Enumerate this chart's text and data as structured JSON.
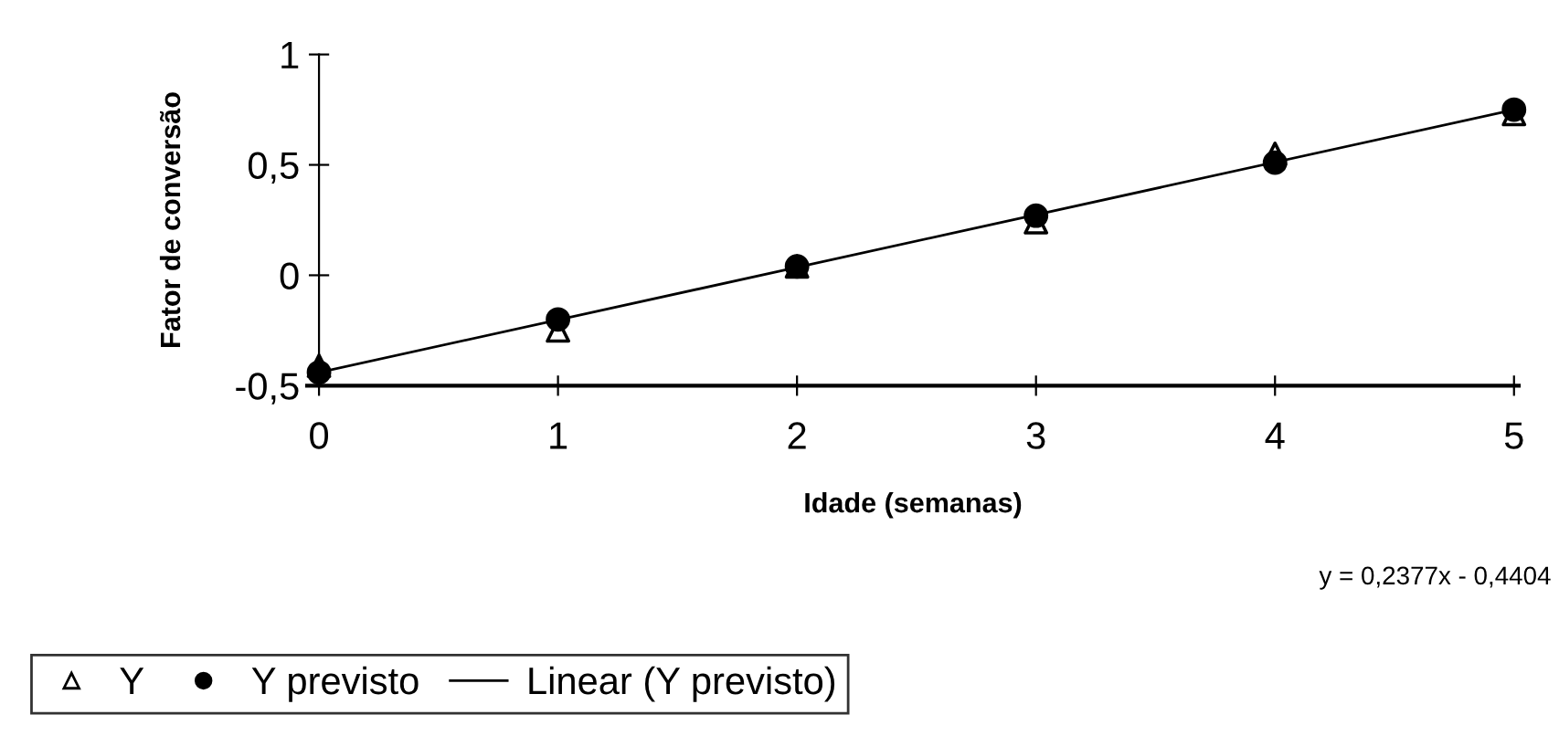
{
  "chart_data": {
    "type": "scatter",
    "xlabel": "Idade (semanas)",
    "ylabel": "Fator de conversão",
    "x": [
      0,
      1,
      2,
      3,
      4,
      5
    ],
    "series": [
      {
        "name": "Y",
        "color": "#000000",
        "marker": "triangle",
        "values": [
          -0.41,
          -0.25,
          0.04,
          0.24,
          0.55,
          0.73
        ]
      },
      {
        "name": "Y previsto",
        "color": "#000000",
        "marker": "circle",
        "values": [
          -0.44,
          -0.2,
          0.04,
          0.27,
          0.51,
          0.75
        ]
      },
      {
        "name": "Linear (Y previsto)",
        "type": "line",
        "color": "#000000",
        "marker": "none",
        "line_style": "solid",
        "x": [
          0,
          5
        ],
        "values": [
          -0.44,
          0.75
        ]
      }
    ],
    "xlim": [
      -0.05,
      5.02
    ],
    "ylim": [
      -0.5,
      1
    ],
    "xticks": [
      0,
      1,
      2,
      3,
      4,
      5
    ],
    "yticks": [
      {
        "value": -0.5,
        "label": "-0,5"
      },
      {
        "value": 0,
        "label": "0"
      },
      {
        "value": 0.5,
        "label": "0,5"
      },
      {
        "value": 1,
        "label": "1"
      }
    ],
    "grid": false,
    "legend": "bottom left",
    "annotations": [
      "y = 0,2377x - 0,4404"
    ]
  }
}
